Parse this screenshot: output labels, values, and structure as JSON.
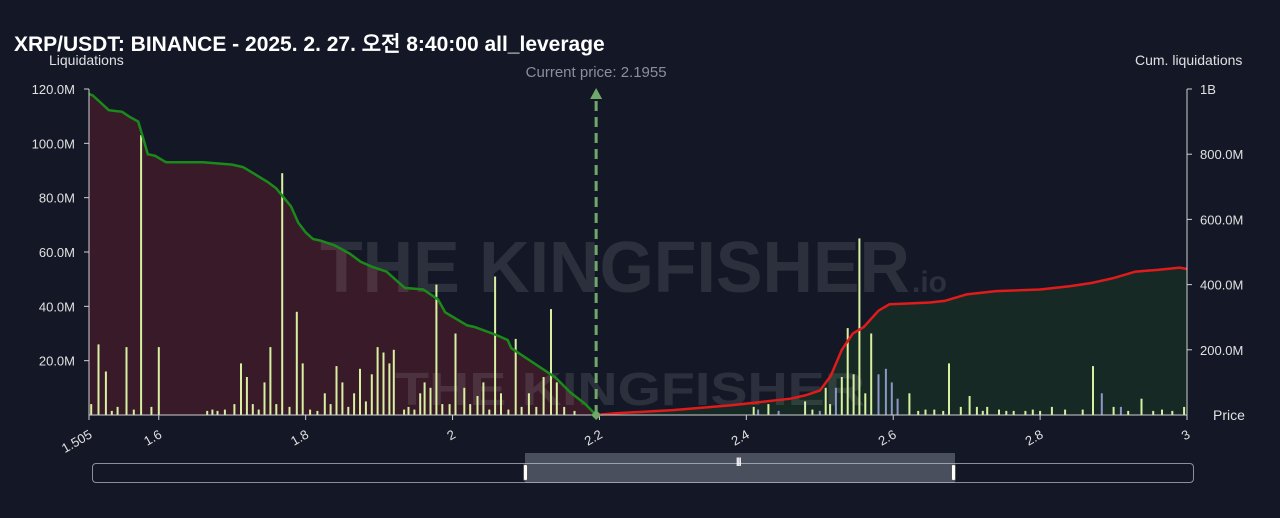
{
  "header": {
    "title": "XRP/USDT: BINANCE - 2025. 2. 27. 오전 8:40:00 all_leverage",
    "left_axis_title": "Liquidations",
    "right_axis_title": "Cum. liquidations",
    "x_axis_title": "Price",
    "current_price_label": "Current price: 2.1955",
    "watermark": "THE KINGFISHER",
    "watermark_suffix": ".io"
  },
  "colors": {
    "background": "#141826",
    "short_cum_line": "#1a8a1a",
    "long_cum_line": "#e01b1b",
    "short_fill": "#3a1a28",
    "long_fill": "#172a25",
    "bar_light": "#d9f0a0",
    "bar_blue": "#8e96c8",
    "current_price_line": "#6fa86a"
  },
  "chart_data": {
    "type": "bar",
    "current_price": 2.1955,
    "xlim": [
      1.505,
      3.0
    ],
    "ylim_left": [
      0,
      120000000
    ],
    "ylim_right": [
      0,
      1000000000
    ],
    "x_ticks": [
      {
        "value": 1.505,
        "label": "1.505"
      },
      {
        "value": 1.6,
        "label": "1.6"
      },
      {
        "value": 1.8,
        "label": "1.8"
      },
      {
        "value": 2.0,
        "label": "2"
      },
      {
        "value": 2.2,
        "label": "2.2"
      },
      {
        "value": 2.4,
        "label": "2.4"
      },
      {
        "value": 2.6,
        "label": "2.6"
      },
      {
        "value": 2.8,
        "label": "2.8"
      },
      {
        "value": 3.0,
        "label": "3"
      }
    ],
    "y_left_ticks": [
      {
        "value": 20000000,
        "label": "20.0M"
      },
      {
        "value": 40000000,
        "label": "40.0M"
      },
      {
        "value": 60000000,
        "label": "60.0M"
      },
      {
        "value": 80000000,
        "label": "80.0M"
      },
      {
        "value": 100000000,
        "label": "100.0M"
      },
      {
        "value": 120000000,
        "label": "120.0M"
      }
    ],
    "y_right_ticks": [
      {
        "value": 200000000,
        "label": "200.0M"
      },
      {
        "value": 400000000,
        "label": "400.0M"
      },
      {
        "value": 600000000,
        "label": "600.0M"
      },
      {
        "value": 800000000,
        "label": "800.0M"
      },
      {
        "value": 1000000000,
        "label": "1B"
      }
    ],
    "bars": [
      {
        "x": 1.508,
        "y": 4000000,
        "c": "light"
      },
      {
        "x": 1.518,
        "y": 26000000,
        "c": "light"
      },
      {
        "x": 1.528,
        "y": 16000000,
        "c": "light"
      },
      {
        "x": 1.536,
        "y": 1500000,
        "c": "light"
      },
      {
        "x": 1.544,
        "y": 3000000,
        "c": "light"
      },
      {
        "x": 1.556,
        "y": 25000000,
        "c": "light"
      },
      {
        "x": 1.566,
        "y": 2000000,
        "c": "light"
      },
      {
        "x": 1.576,
        "y": 103000000,
        "c": "light"
      },
      {
        "x": 1.59,
        "y": 3000000,
        "c": "light"
      },
      {
        "x": 1.6,
        "y": 25000000,
        "c": "light"
      },
      {
        "x": 1.666,
        "y": 1500000,
        "c": "light"
      },
      {
        "x": 1.673,
        "y": 2000000,
        "c": "light"
      },
      {
        "x": 1.68,
        "y": 1500000,
        "c": "light"
      },
      {
        "x": 1.69,
        "y": 2000000,
        "c": "light"
      },
      {
        "x": 1.703,
        "y": 4000000,
        "c": "light"
      },
      {
        "x": 1.712,
        "y": 19000000,
        "c": "light"
      },
      {
        "x": 1.72,
        "y": 14000000,
        "c": "light"
      },
      {
        "x": 1.728,
        "y": 4000000,
        "c": "light"
      },
      {
        "x": 1.736,
        "y": 2000000,
        "c": "light"
      },
      {
        "x": 1.744,
        "y": 12000000,
        "c": "light"
      },
      {
        "x": 1.752,
        "y": 25000000,
        "c": "light"
      },
      {
        "x": 1.76,
        "y": 4000000,
        "c": "light"
      },
      {
        "x": 1.768,
        "y": 89000000,
        "c": "light"
      },
      {
        "x": 1.778,
        "y": 3000000,
        "c": "light"
      },
      {
        "x": 1.788,
        "y": 38000000,
        "c": "light"
      },
      {
        "x": 1.796,
        "y": 19000000,
        "c": "light"
      },
      {
        "x": 1.806,
        "y": 2000000,
        "c": "light"
      },
      {
        "x": 1.816,
        "y": 1500000,
        "c": "light"
      },
      {
        "x": 1.826,
        "y": 8000000,
        "c": "light"
      },
      {
        "x": 1.834,
        "y": 4000000,
        "c": "light"
      },
      {
        "x": 1.842,
        "y": 18000000,
        "c": "light"
      },
      {
        "x": 1.85,
        "y": 12000000,
        "c": "light"
      },
      {
        "x": 1.858,
        "y": 3000000,
        "c": "light"
      },
      {
        "x": 1.866,
        "y": 8000000,
        "c": "light"
      },
      {
        "x": 1.874,
        "y": 17000000,
        "c": "light"
      },
      {
        "x": 1.882,
        "y": 5000000,
        "c": "light"
      },
      {
        "x": 1.89,
        "y": 15000000,
        "c": "light"
      },
      {
        "x": 1.898,
        "y": 25000000,
        "c": "light"
      },
      {
        "x": 1.906,
        "y": 23000000,
        "c": "light"
      },
      {
        "x": 1.914,
        "y": 19000000,
        "c": "light"
      },
      {
        "x": 1.92,
        "y": 24000000,
        "c": "light"
      },
      {
        "x": 1.934,
        "y": 2000000,
        "c": "light"
      },
      {
        "x": 1.94,
        "y": 3000000,
        "c": "light"
      },
      {
        "x": 1.948,
        "y": 2000000,
        "c": "light"
      },
      {
        "x": 1.956,
        "y": 8000000,
        "c": "light"
      },
      {
        "x": 1.962,
        "y": 12000000,
        "c": "light"
      },
      {
        "x": 1.97,
        "y": 10000000,
        "c": "light"
      },
      {
        "x": 1.978,
        "y": 48000000,
        "c": "light"
      },
      {
        "x": 1.986,
        "y": 4000000,
        "c": "light"
      },
      {
        "x": 1.996,
        "y": 4000000,
        "c": "light"
      },
      {
        "x": 2.004,
        "y": 30000000,
        "c": "light"
      },
      {
        "x": 2.016,
        "y": 10000000,
        "c": "light"
      },
      {
        "x": 2.024,
        "y": 4000000,
        "c": "light"
      },
      {
        "x": 2.034,
        "y": 7000000,
        "c": "light"
      },
      {
        "x": 2.042,
        "y": 12000000,
        "c": "light"
      },
      {
        "x": 2.05,
        "y": 2000000,
        "c": "light"
      },
      {
        "x": 2.058,
        "y": 51000000,
        "c": "light"
      },
      {
        "x": 2.066,
        "y": 8000000,
        "c": "light"
      },
      {
        "x": 2.076,
        "y": 2000000,
        "c": "light"
      },
      {
        "x": 2.086,
        "y": 28000000,
        "c": "light"
      },
      {
        "x": 2.094,
        "y": 3000000,
        "c": "light"
      },
      {
        "x": 2.104,
        "y": 8000000,
        "c": "light"
      },
      {
        "x": 2.114,
        "y": 3000000,
        "c": "light"
      },
      {
        "x": 2.124,
        "y": 14000000,
        "c": "light"
      },
      {
        "x": 2.134,
        "y": 39000000,
        "c": "light"
      },
      {
        "x": 2.142,
        "y": 12000000,
        "c": "light"
      },
      {
        "x": 2.152,
        "y": 3000000,
        "c": "light"
      },
      {
        "x": 2.166,
        "y": 1500000,
        "c": "light"
      },
      {
        "x": 2.41,
        "y": 3000000,
        "c": "light"
      },
      {
        "x": 2.416,
        "y": 2000000,
        "c": "blue"
      },
      {
        "x": 2.43,
        "y": 4000000,
        "c": "light"
      },
      {
        "x": 2.444,
        "y": 1500000,
        "c": "blue"
      },
      {
        "x": 2.48,
        "y": 5000000,
        "c": "light"
      },
      {
        "x": 2.49,
        "y": 2000000,
        "c": "light"
      },
      {
        "x": 2.5,
        "y": 1500000,
        "c": "blue"
      },
      {
        "x": 2.508,
        "y": 10000000,
        "c": "light"
      },
      {
        "x": 2.514,
        "y": 4000000,
        "c": "light"
      },
      {
        "x": 2.522,
        "y": 10000000,
        "c": "blue"
      },
      {
        "x": 2.53,
        "y": 14000000,
        "c": "light"
      },
      {
        "x": 2.538,
        "y": 32000000,
        "c": "light"
      },
      {
        "x": 2.546,
        "y": 15000000,
        "c": "light"
      },
      {
        "x": 2.554,
        "y": 65000000,
        "c": "light"
      },
      {
        "x": 2.562,
        "y": 8000000,
        "c": "light"
      },
      {
        "x": 2.57,
        "y": 30000000,
        "c": "light"
      },
      {
        "x": 2.58,
        "y": 15000000,
        "c": "blue"
      },
      {
        "x": 2.59,
        "y": 17000000,
        "c": "blue"
      },
      {
        "x": 2.598,
        "y": 12000000,
        "c": "blue"
      },
      {
        "x": 2.606,
        "y": 6000000,
        "c": "blue"
      },
      {
        "x": 2.622,
        "y": 8000000,
        "c": "light"
      },
      {
        "x": 2.634,
        "y": 1500000,
        "c": "light"
      },
      {
        "x": 2.644,
        "y": 2000000,
        "c": "light"
      },
      {
        "x": 2.656,
        "y": 2000000,
        "c": "light"
      },
      {
        "x": 2.668,
        "y": 1500000,
        "c": "light"
      },
      {
        "x": 2.676,
        "y": 19000000,
        "c": "light"
      },
      {
        "x": 2.692,
        "y": 3000000,
        "c": "light"
      },
      {
        "x": 2.704,
        "y": 7000000,
        "c": "light"
      },
      {
        "x": 2.714,
        "y": 3000000,
        "c": "light"
      },
      {
        "x": 2.722,
        "y": 1500000,
        "c": "light"
      },
      {
        "x": 2.728,
        "y": 3000000,
        "c": "light"
      },
      {
        "x": 2.744,
        "y": 2000000,
        "c": "light"
      },
      {
        "x": 2.754,
        "y": 1500000,
        "c": "light"
      },
      {
        "x": 2.764,
        "y": 1500000,
        "c": "light"
      },
      {
        "x": 2.78,
        "y": 1500000,
        "c": "light"
      },
      {
        "x": 2.79,
        "y": 2000000,
        "c": "light"
      },
      {
        "x": 2.8,
        "y": 1500000,
        "c": "light"
      },
      {
        "x": 2.816,
        "y": 3000000,
        "c": "light"
      },
      {
        "x": 2.834,
        "y": 2000000,
        "c": "light"
      },
      {
        "x": 2.858,
        "y": 2000000,
        "c": "light"
      },
      {
        "x": 2.872,
        "y": 18000000,
        "c": "light"
      },
      {
        "x": 2.884,
        "y": 8000000,
        "c": "blue"
      },
      {
        "x": 2.9,
        "y": 3000000,
        "c": "light"
      },
      {
        "x": 2.91,
        "y": 3000000,
        "c": "blue"
      },
      {
        "x": 2.92,
        "y": 1500000,
        "c": "light"
      },
      {
        "x": 2.938,
        "y": 6000000,
        "c": "light"
      },
      {
        "x": 2.954,
        "y": 1500000,
        "c": "light"
      },
      {
        "x": 2.966,
        "y": 2000000,
        "c": "light"
      },
      {
        "x": 2.98,
        "y": 1500000,
        "c": "light"
      },
      {
        "x": 2.996,
        "y": 3000000,
        "c": "light"
      }
    ],
    "short_cum": [
      [
        1.505,
        985000000
      ],
      [
        1.51,
        980000000
      ],
      [
        1.52,
        960000000
      ],
      [
        1.532,
        935000000
      ],
      [
        1.55,
        930000000
      ],
      [
        1.56,
        915000000
      ],
      [
        1.572,
        900000000
      ],
      [
        1.578,
        855000000
      ],
      [
        1.585,
        800000000
      ],
      [
        1.595,
        795000000
      ],
      [
        1.61,
        775000000
      ],
      [
        1.66,
        775000000
      ],
      [
        1.7,
        768000000
      ],
      [
        1.715,
        760000000
      ],
      [
        1.73,
        740000000
      ],
      [
        1.748,
        715000000
      ],
      [
        1.76,
        695000000
      ],
      [
        1.78,
        640000000
      ],
      [
        1.79,
        590000000
      ],
      [
        1.8,
        560000000
      ],
      [
        1.81,
        540000000
      ],
      [
        1.82,
        535000000
      ],
      [
        1.84,
        520000000
      ],
      [
        1.86,
        495000000
      ],
      [
        1.875,
        470000000
      ],
      [
        1.89,
        455000000
      ],
      [
        1.91,
        440000000
      ],
      [
        1.935,
        390000000
      ],
      [
        1.96,
        385000000
      ],
      [
        1.98,
        355000000
      ],
      [
        1.99,
        315000000
      ],
      [
        2.02,
        275000000
      ],
      [
        2.03,
        270000000
      ],
      [
        2.06,
        245000000
      ],
      [
        2.075,
        230000000
      ],
      [
        2.08,
        205000000
      ],
      [
        2.1,
        175000000
      ],
      [
        2.12,
        145000000
      ],
      [
        2.14,
        115000000
      ],
      [
        2.16,
        70000000
      ],
      [
        2.18,
        35000000
      ],
      [
        2.1955,
        0
      ]
    ],
    "long_cum": [
      [
        2.1955,
        0
      ],
      [
        2.22,
        5000000
      ],
      [
        2.3,
        15000000
      ],
      [
        2.38,
        30000000
      ],
      [
        2.42,
        40000000
      ],
      [
        2.46,
        50000000
      ],
      [
        2.48,
        60000000
      ],
      [
        2.5,
        75000000
      ],
      [
        2.515,
        120000000
      ],
      [
        2.53,
        200000000
      ],
      [
        2.545,
        250000000
      ],
      [
        2.56,
        270000000
      ],
      [
        2.58,
        320000000
      ],
      [
        2.595,
        340000000
      ],
      [
        2.62,
        342000000
      ],
      [
        2.65,
        345000000
      ],
      [
        2.67,
        350000000
      ],
      [
        2.7,
        370000000
      ],
      [
        2.74,
        380000000
      ],
      [
        2.8,
        385000000
      ],
      [
        2.84,
        395000000
      ],
      [
        2.87,
        405000000
      ],
      [
        2.9,
        420000000
      ],
      [
        2.93,
        440000000
      ],
      [
        2.96,
        445000000
      ],
      [
        2.99,
        452000000
      ],
      [
        3.0,
        448000000
      ]
    ]
  }
}
